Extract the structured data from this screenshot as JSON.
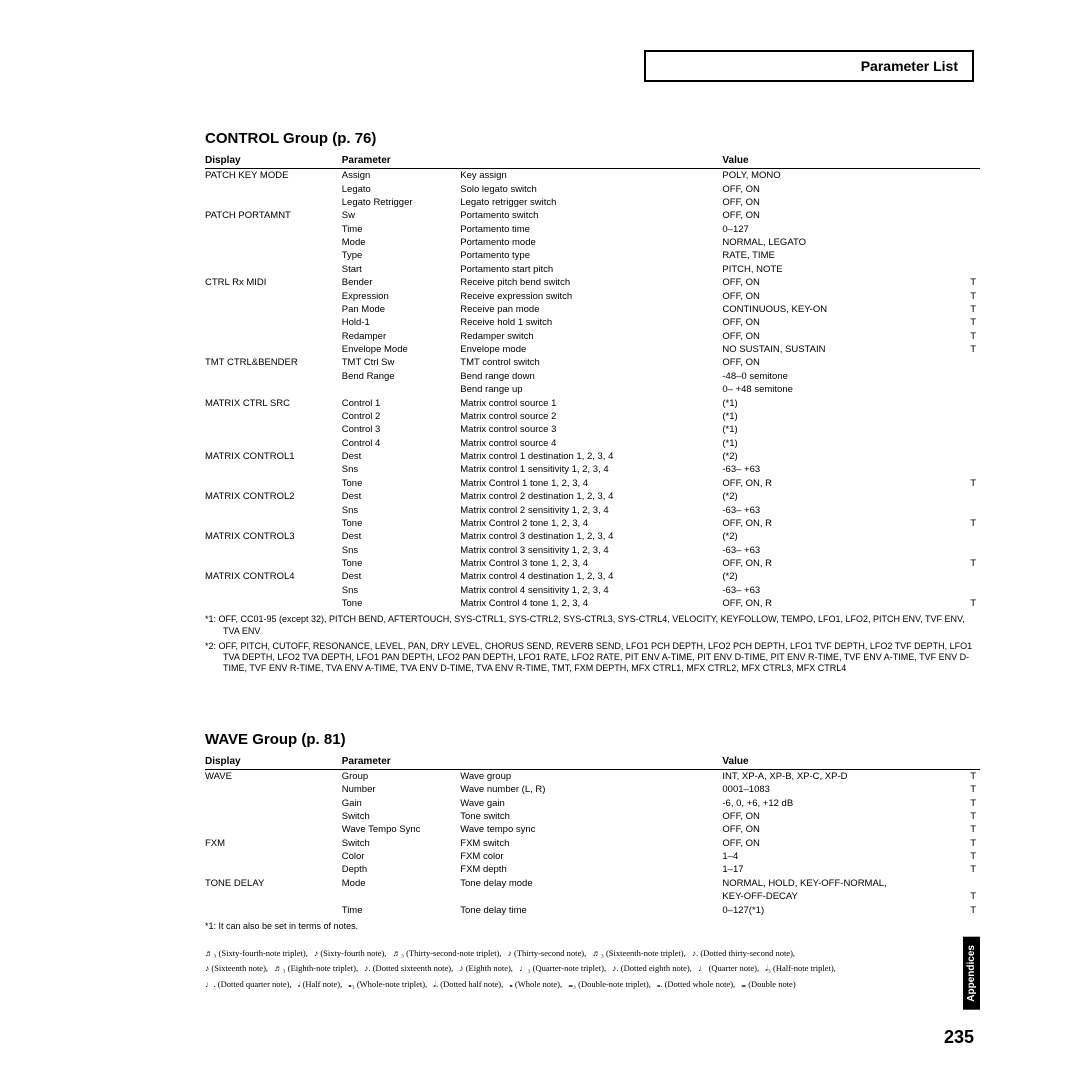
{
  "header": "Parameter List",
  "page_number": "235",
  "side_tab": "Appendices",
  "sections": [
    {
      "title": "CONTROL Group (p. 76)",
      "headers": [
        "Display",
        "Parameter",
        "",
        "Value",
        ""
      ],
      "rows": [
        [
          "PATCH KEY MODE",
          "Assign",
          "Key assign",
          "POLY, MONO",
          ""
        ],
        [
          "",
          "Legato",
          "Solo legato switch",
          "OFF, ON",
          ""
        ],
        [
          "",
          "Legato Retrigger",
          "Legato retrigger switch",
          "OFF, ON",
          ""
        ],
        [
          "PATCH PORTAMNT",
          "Sw",
          "Portamento switch",
          "OFF, ON",
          ""
        ],
        [
          "",
          "Time",
          "Portamento time",
          "0–127",
          ""
        ],
        [
          "",
          "Mode",
          "Portamento mode",
          "NORMAL, LEGATO",
          ""
        ],
        [
          "",
          "Type",
          "Portamento type",
          "RATE, TIME",
          ""
        ],
        [
          "",
          "Start",
          "Portamento start pitch",
          "PITCH, NOTE",
          ""
        ],
        [
          "CTRL Rx MIDI",
          "Bender",
          "Receive pitch bend switch",
          "OFF, ON",
          "T"
        ],
        [
          "",
          "Expression",
          "Receive expression switch",
          "OFF, ON",
          "T"
        ],
        [
          "",
          "Pan Mode",
          "Receive pan mode",
          "CONTINUOUS, KEY-ON",
          "T"
        ],
        [
          "",
          "Hold-1",
          "Receive hold 1 switch",
          "OFF, ON",
          "T"
        ],
        [
          "",
          "Redamper",
          "Redamper switch",
          "OFF, ON",
          "T"
        ],
        [
          "",
          "Envelope Mode",
          "Envelope mode",
          "NO SUSTAIN, SUSTAIN",
          "T"
        ],
        [
          "TMT CTRL&BENDER",
          "TMT Ctrl Sw",
          "TMT control switch",
          "OFF, ON",
          ""
        ],
        [
          "",
          "Bend Range",
          "Bend range down",
          "-48–0 semitone",
          ""
        ],
        [
          "",
          "",
          "Bend range up",
          "0– +48 semitone",
          ""
        ],
        [
          "MATRIX CTRL SRC",
          "Control 1",
          "Matrix control source 1",
          "(*1)",
          ""
        ],
        [
          "",
          "Control 2",
          "Matrix control source 2",
          "(*1)",
          ""
        ],
        [
          "",
          "Control 3",
          "Matrix control source 3",
          "(*1)",
          ""
        ],
        [
          "",
          "Control 4",
          "Matrix control source 4",
          "(*1)",
          ""
        ],
        [
          "MATRIX CONTROL1",
          "Dest",
          "Matrix control 1 destination 1, 2, 3, 4",
          "(*2)",
          ""
        ],
        [
          "",
          "Sns",
          "Matrix control 1 sensitivity 1, 2, 3, 4",
          "-63– +63",
          ""
        ],
        [
          "",
          "Tone",
          "Matrix Control 1 tone 1, 2, 3, 4",
          "OFF, ON, R",
          "T"
        ],
        [
          "MATRIX CONTROL2",
          "Dest",
          "Matrix control 2 destination 1, 2, 3, 4",
          "(*2)",
          ""
        ],
        [
          "",
          "Sns",
          "Matrix control 2 sensitivity 1, 2, 3, 4",
          "-63– +63",
          ""
        ],
        [
          "",
          "Tone",
          "Matrix Control 2 tone 1, 2, 3, 4",
          "OFF, ON, R",
          "T"
        ],
        [
          "MATRIX CONTROL3",
          "Dest",
          "Matrix control 3 destination 1, 2, 3, 4",
          "(*2)",
          ""
        ],
        [
          "",
          "Sns",
          "Matrix control 3 sensitivity 1, 2, 3, 4",
          "-63– +63",
          ""
        ],
        [
          "",
          "Tone",
          "Matrix Control 3 tone 1, 2, 3, 4",
          "OFF, ON, R",
          "T"
        ],
        [
          "MATRIX CONTROL4",
          "Dest",
          "Matrix control 4 destination 1, 2, 3, 4",
          "(*2)",
          ""
        ],
        [
          "",
          "Sns",
          "Matrix control 4 sensitivity 1, 2, 3, 4",
          "-63– +63",
          ""
        ],
        [
          "",
          "Tone",
          "Matrix Control 4 tone 1, 2, 3, 4",
          "OFF, ON, R",
          "T"
        ]
      ],
      "footnotes": [
        "*1: OFF, CC01-95 (except 32), PITCH BEND, AFTERTOUCH, SYS-CTRL1, SYS-CTRL2, SYS-CTRL3, SYS-CTRL4, VELOCITY, KEYFOLLOW, TEMPO, LFO1, LFO2, PITCH ENV, TVF ENV, TVA ENV",
        "*2: OFF, PITCH, CUTOFF, RESONANCE, LEVEL, PAN, DRY LEVEL, CHORUS SEND, REVERB SEND, LFO1 PCH DEPTH, LFO2 PCH DEPTH, LFO1 TVF DEPTH, LFO2 TVF DEPTH, LFO1 TVA DEPTH, LFO2 TVA DEPTH, LFO1 PAN DEPTH, LFO2 PAN DEPTH, LFO1 RATE, LFO2 RATE, PIT ENV A-TIME, PIT ENV D-TIME, PIT ENV R-TIME, TVF ENV A-TIME, TVF ENV D-TIME, TVF ENV R-TIME, TVA ENV A-TIME, TVA ENV D-TIME, TVA ENV R-TIME, TMT, FXM DEPTH, MFX CTRL1, MFX CTRL2, MFX CTRL3, MFX CTRL4"
      ]
    },
    {
      "title": "WAVE Group (p. 81)",
      "headers": [
        "Display",
        "Parameter",
        "",
        "Value",
        ""
      ],
      "rows": [
        [
          "WAVE",
          "Group",
          "Wave group",
          "INT, XP-A, XP-B, XP-C, XP-D",
          "T"
        ],
        [
          "",
          "Number",
          "Wave number (L, R)",
          "0001–1083",
          "T"
        ],
        [
          "",
          "Gain",
          "Wave gain",
          "-6, 0, +6, +12 dB",
          "T"
        ],
        [
          "",
          "Switch",
          "Tone switch",
          "OFF, ON",
          "T"
        ],
        [
          "",
          "Wave Tempo Sync",
          "Wave tempo sync",
          "OFF, ON",
          "T"
        ],
        [
          "FXM",
          "Switch",
          "FXM switch",
          "OFF, ON",
          "T"
        ],
        [
          "",
          "Color",
          "FXM color",
          "1–4",
          "T"
        ],
        [
          "",
          "Depth",
          "FXM depth",
          "1–17",
          "T"
        ],
        [
          "TONE DELAY",
          "Mode",
          "Tone delay mode",
          "NORMAL, HOLD, KEY-OFF-NORMAL,",
          ""
        ],
        [
          "",
          "",
          "",
          "KEY-OFF-DECAY",
          "T"
        ],
        [
          "",
          "Time",
          "Tone delay time",
          "0–127(*1)",
          "T"
        ]
      ],
      "footnotes": [
        "*1: It can also be set in terms of notes."
      ]
    }
  ],
  "note_values": [
    [
      "♬₃ (Sixty-fourth-note triplet),",
      "♪ (Sixty-fourth note),",
      "♬₃ (Thirty-second-note triplet),",
      "♪ (Thirty-second note),",
      "♬₃ (Sixteenth-note triplet),",
      "♪. (Dotted thirty-second note),"
    ],
    [
      "♪ (Sixteenth note),",
      "♬₃ (Eighth-note triplet),",
      "♪. (Dotted sixteenth note),",
      "♪ (Eighth note),",
      "♩₃ (Quarter-note triplet),",
      "♪. (Dotted eighth note),",
      "♩ (Quarter note),",
      "𝅗𝅥₃ (Half-note triplet),"
    ],
    [
      "♩. (Dotted quarter note),",
      "𝅗𝅥 (Half note),",
      "𝅝₃ (Whole-note triplet),",
      "𝅗𝅥. (Dotted half note),",
      "𝅝 (Whole note),",
      "𝅜₃ (Double-note triplet),",
      "𝅝. (Dotted whole note),",
      "𝅜 (Double note)"
    ]
  ]
}
